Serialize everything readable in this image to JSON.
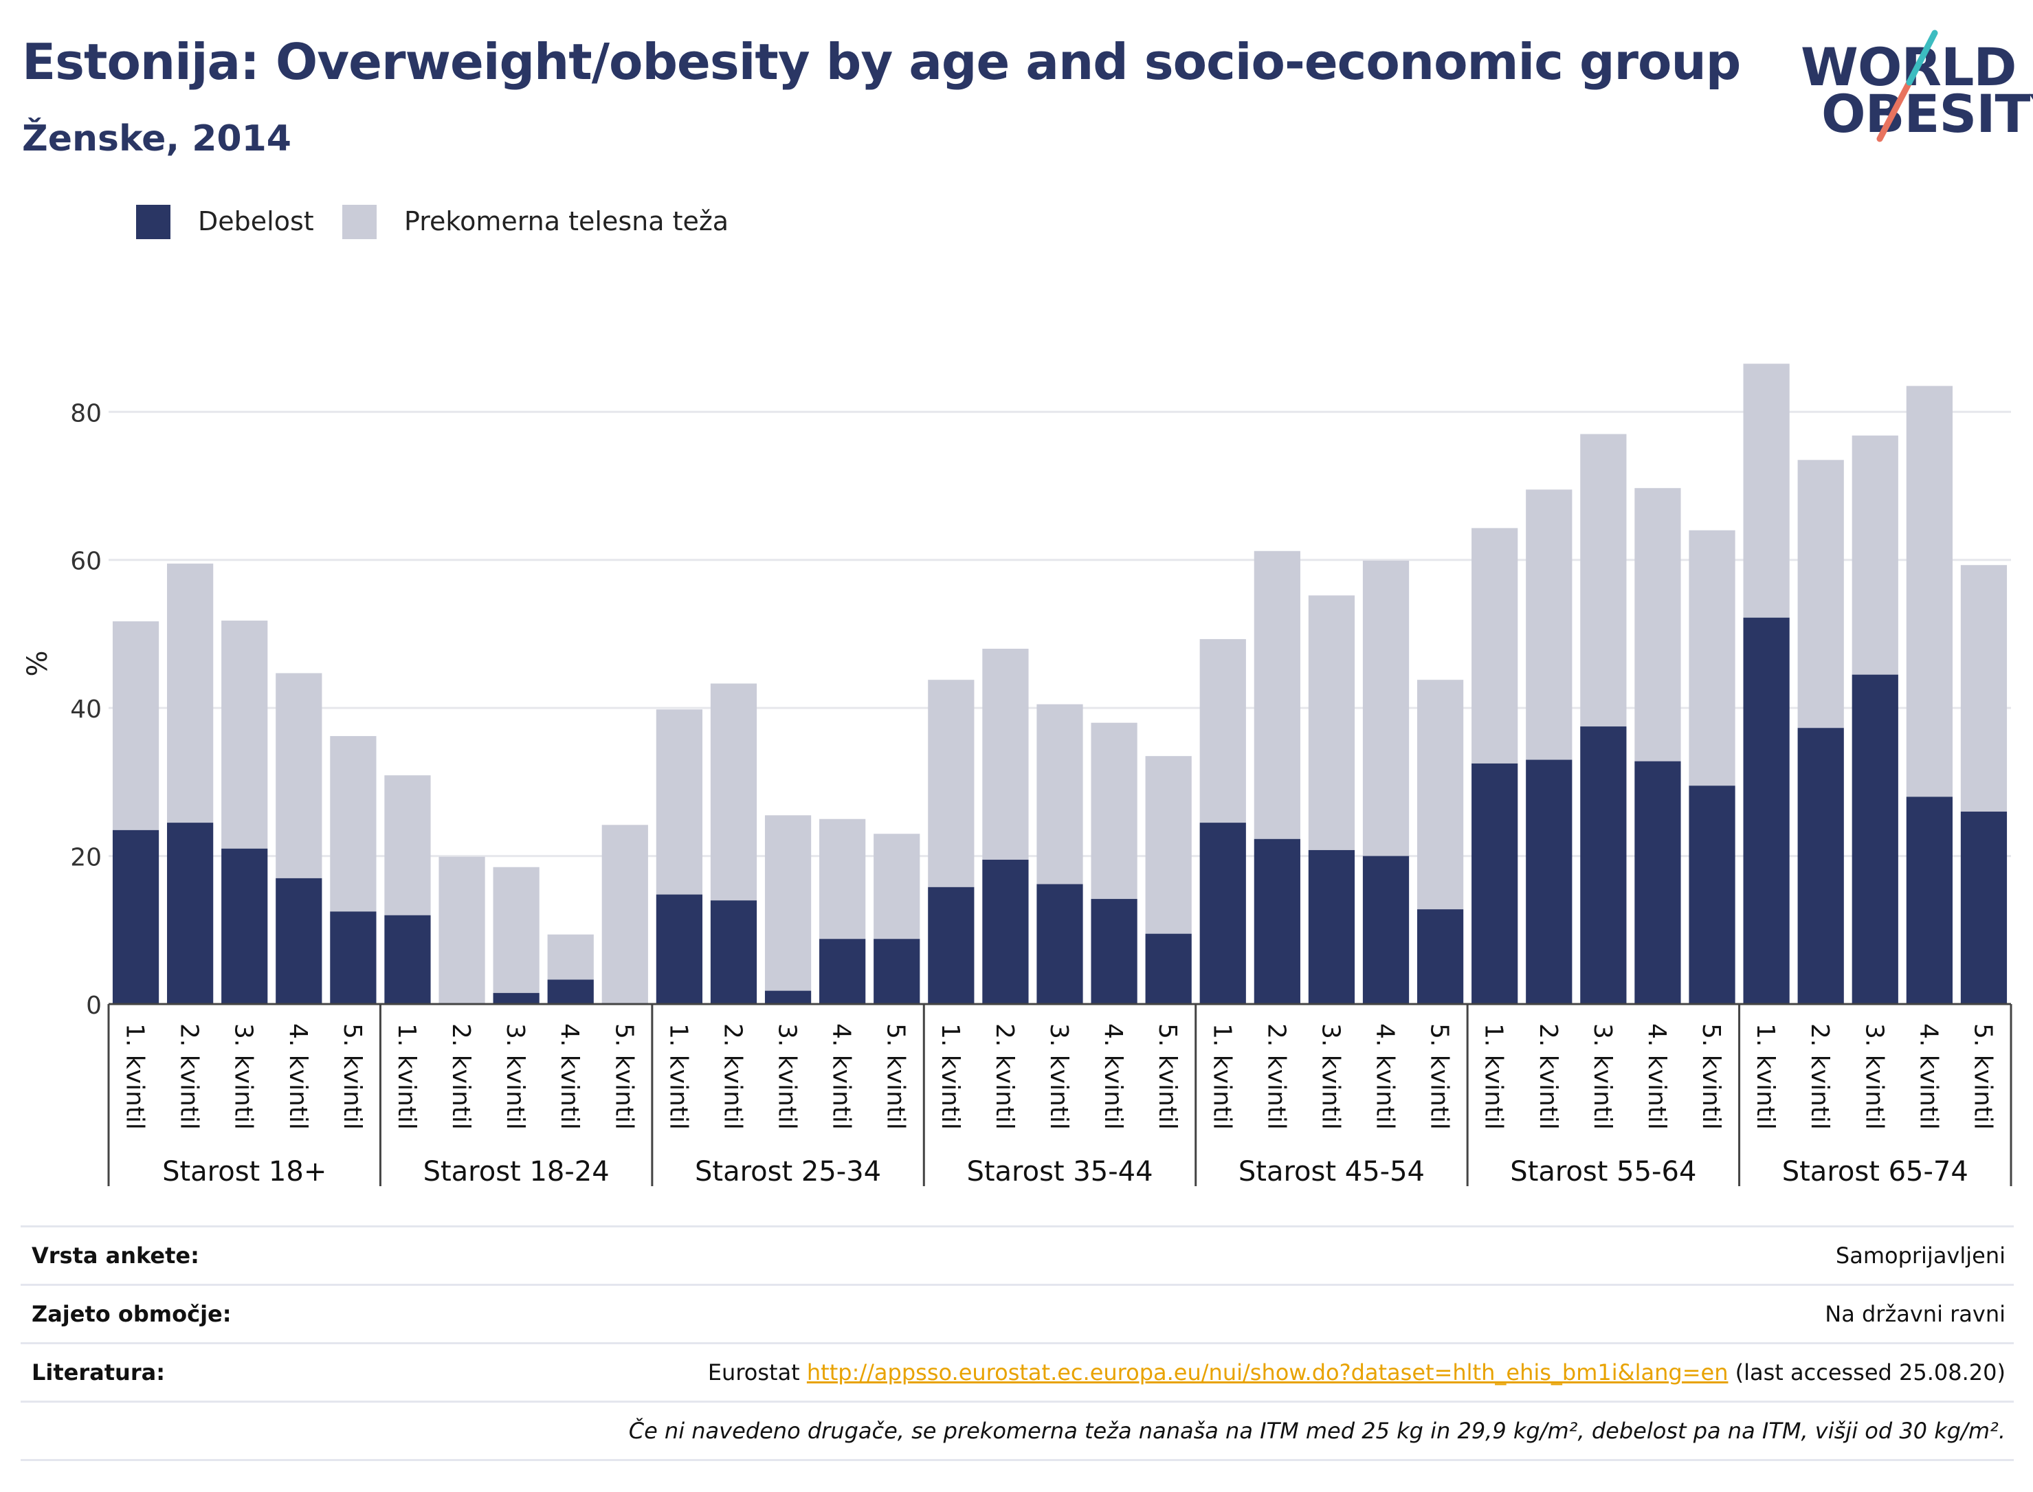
{
  "header": {
    "title": "Estonija: Overweight/obesity by age and socio-economic group",
    "subtitle": "Ženske, 2014"
  },
  "logo": {
    "line1": "WORLD",
    "line2": "OBESITY",
    "text_color": "#2a3664",
    "slash_colors": [
      "#3cbcc0",
      "#e8735f"
    ]
  },
  "legend": [
    {
      "label": "Debelost",
      "color": "#2a3664"
    },
    {
      "label": "Prekomerna telesna teža",
      "color": "#caccd8"
    }
  ],
  "chart_data": {
    "type": "bar",
    "stacked": true,
    "ylabel": "%",
    "ylim": [
      0,
      92
    ],
    "yticks": [
      0,
      20,
      40,
      60,
      80
    ],
    "grid": true,
    "legend_position": "top-left",
    "groups": [
      {
        "name": "Starost 18+",
        "categories": [
          "1. kvintil",
          "2. kvintil",
          "3. kvintil",
          "4. kvintil",
          "5. kvintil"
        ],
        "debelost": [
          23.5,
          24.5,
          21.0,
          17.0,
          12.5
        ],
        "skupaj": [
          51.7,
          59.5,
          51.8,
          44.7,
          36.2
        ]
      },
      {
        "name": "Starost 18-24",
        "categories": [
          "1. kvintil",
          "2. kvintil",
          "3. kvintil",
          "4. kvintil",
          "5. kvintil"
        ],
        "debelost": [
          12.0,
          0,
          1.5,
          3.3,
          0
        ],
        "skupaj": [
          30.9,
          19.9,
          18.5,
          9.4,
          24.2
        ]
      },
      {
        "name": "Starost 25-34",
        "categories": [
          "1. kvintil",
          "2. kvintil",
          "3. kvintil",
          "4. kvintil",
          "5. kvintil"
        ],
        "debelost": [
          14.8,
          14.0,
          1.8,
          8.8,
          8.8
        ],
        "skupaj": [
          39.8,
          43.3,
          25.5,
          25.0,
          23.0
        ]
      },
      {
        "name": "Starost 35-44",
        "categories": [
          "1. kvintil",
          "2. kvintil",
          "3. kvintil",
          "4. kvintil",
          "5. kvintil"
        ],
        "debelost": [
          15.8,
          19.5,
          16.2,
          14.2,
          9.5
        ],
        "skupaj": [
          43.8,
          48.0,
          40.5,
          38.0,
          33.5
        ]
      },
      {
        "name": "Starost 45-54",
        "categories": [
          "1. kvintil",
          "2. kvintil",
          "3. kvintil",
          "4. kvintil",
          "5. kvintil"
        ],
        "debelost": [
          24.5,
          22.3,
          20.8,
          20.0,
          12.8
        ],
        "skupaj": [
          49.3,
          61.2,
          55.2,
          59.9,
          43.8
        ]
      },
      {
        "name": "Starost 55-64",
        "categories": [
          "1. kvintil",
          "2. kvintil",
          "3. kvintil",
          "4. kvintil",
          "5. kvintil"
        ],
        "debelost": [
          32.5,
          33.0,
          37.5,
          32.8,
          29.5
        ],
        "skupaj": [
          64.3,
          69.5,
          77.0,
          69.7,
          64.0
        ]
      },
      {
        "name": "Starost 65-74",
        "categories": [
          "1. kvintil",
          "2. kvintil",
          "3. kvintil",
          "4. kvintil",
          "5. kvintil"
        ],
        "debelost": [
          52.2,
          37.3,
          44.5,
          28.0,
          26.0
        ],
        "skupaj": [
          86.5,
          73.5,
          76.8,
          83.5,
          59.3
        ]
      }
    ],
    "colors": {
      "debelost": "#2a3664",
      "prekomerna": "#caccd8",
      "grid": "#e6e7ec",
      "axis": "#444444"
    }
  },
  "meta": {
    "rows": [
      {
        "label": "Vrsta ankete:",
        "value": "Samoprijavljeni"
      },
      {
        "label": "Zajeto območje:",
        "value": "Na državni ravni"
      },
      {
        "label": "Literatura:",
        "value_prefix": "Eurostat ",
        "link": "http://appsso.eurostat.ec.europa.eu/nui/show.do?dataset=hlth_ehis_bm1i&lang=en",
        "value_suffix": " (last accessed 25.08.20)"
      }
    ],
    "note": "Če ni navedeno drugače, se prekomerna teža nanaša na ITM med 25 kg in 29,9 kg/m², debelost pa na ITM, višji od 30 kg/m²."
  }
}
